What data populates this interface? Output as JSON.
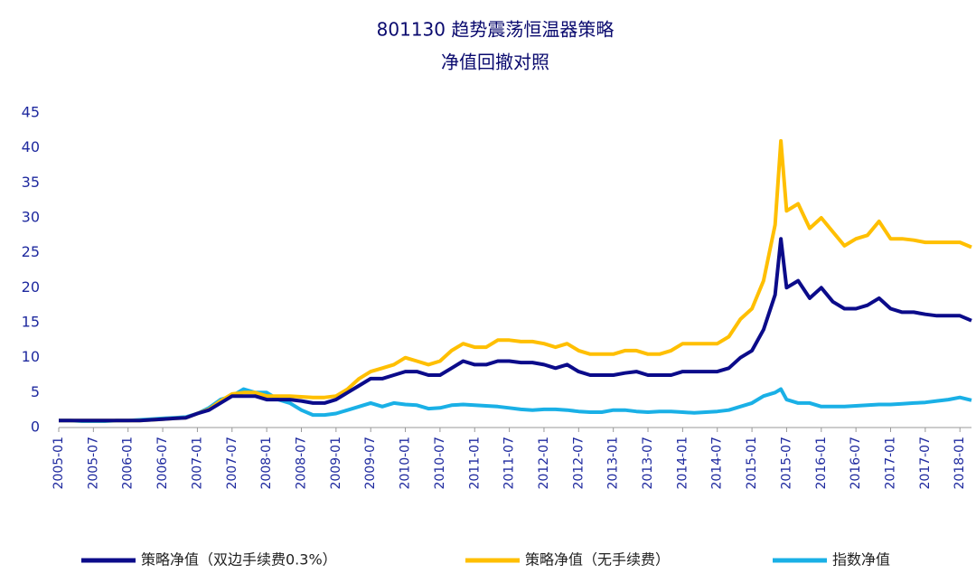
{
  "chart_data": {
    "type": "line",
    "title": "801130 趋势震荡恒温器策略",
    "subtitle": "净值回撤对照",
    "x": [
      "2005-01",
      "2005-03",
      "2005-05",
      "2005-07",
      "2005-09",
      "2005-11",
      "2006-01",
      "2006-03",
      "2006-05",
      "2006-07",
      "2006-09",
      "2006-11",
      "2007-01",
      "2007-03",
      "2007-05",
      "2007-07",
      "2007-09",
      "2007-11",
      "2008-01",
      "2008-03",
      "2008-05",
      "2008-07",
      "2008-09",
      "2008-11",
      "2009-01",
      "2009-03",
      "2009-05",
      "2009-07",
      "2009-09",
      "2009-11",
      "2010-01",
      "2010-03",
      "2010-05",
      "2010-07",
      "2010-09",
      "2010-11",
      "2011-01",
      "2011-03",
      "2011-05",
      "2011-07",
      "2011-09",
      "2011-11",
      "2012-01",
      "2012-03",
      "2012-05",
      "2012-07",
      "2012-09",
      "2012-11",
      "2013-01",
      "2013-03",
      "2013-05",
      "2013-07",
      "2013-09",
      "2013-11",
      "2014-01",
      "2014-03",
      "2014-05",
      "2014-07",
      "2014-09",
      "2014-11",
      "2015-01",
      "2015-03",
      "2015-05",
      "2015-06",
      "2015-07",
      "2015-09",
      "2015-11",
      "2016-01",
      "2016-03",
      "2016-05",
      "2016-07",
      "2016-09",
      "2016-11",
      "2017-01",
      "2017-03",
      "2017-05",
      "2017-07",
      "2017-09",
      "2017-11",
      "2018-01",
      "2018-03"
    ],
    "series": [
      {
        "name": "策略净值（双边手续费0.3%）",
        "color": "#0b0b8a",
        "values": [
          1,
          1,
          1,
          1,
          1,
          1,
          1,
          1,
          1.1,
          1.2,
          1.3,
          1.4,
          2,
          2.5,
          3.5,
          4.5,
          4.5,
          4.5,
          4,
          4,
          4,
          3.8,
          3.5,
          3.5,
          4,
          5,
          6,
          7,
          7,
          7.5,
          8,
          8,
          7.5,
          7.5,
          8.5,
          9.5,
          9,
          9,
          9.5,
          9.5,
          9.3,
          9.3,
          9,
          8.5,
          9,
          8,
          7.5,
          7.5,
          7.5,
          7.8,
          8,
          7.5,
          7.5,
          7.5,
          8,
          8,
          8,
          8,
          8.5,
          10,
          11,
          14,
          19,
          27,
          20,
          21,
          18.5,
          20,
          18,
          17,
          17,
          17.5,
          18.5,
          17,
          16.5,
          16.5,
          16.2,
          16,
          16,
          16,
          15.3
        ]
      },
      {
        "name": "策略净值（无手续费）",
        "color": "#ffbf00",
        "values": [
          1,
          1,
          1,
          1,
          1,
          1,
          1,
          1,
          1.1,
          1.2,
          1.3,
          1.4,
          2,
          2.6,
          3.8,
          4.8,
          5,
          5,
          4.5,
          4.5,
          4.5,
          4.4,
          4.3,
          4.3,
          4.5,
          5.5,
          7,
          8,
          8.5,
          9,
          10,
          9.5,
          9,
          9.5,
          11,
          12,
          11.5,
          11.5,
          12.5,
          12.5,
          12.3,
          12.3,
          12,
          11.5,
          12,
          11,
          10.5,
          10.5,
          10.5,
          11,
          11,
          10.5,
          10.5,
          11,
          12,
          12,
          12,
          12,
          13,
          15.5,
          17,
          21,
          29,
          41,
          31,
          32,
          28.5,
          30,
          28,
          26,
          27,
          27.5,
          29.5,
          27,
          27,
          26.8,
          26.5,
          26.5,
          26.5,
          26.5,
          25.8
        ]
      },
      {
        "name": "指数净值",
        "color": "#1ab0e6",
        "values": [
          1,
          1,
          0.9,
          0.9,
          0.9,
          1,
          1,
          1.1,
          1.2,
          1.3,
          1.4,
          1.5,
          2,
          2.8,
          4,
          4.5,
          5.5,
          5,
          5,
          4,
          3.5,
          2.5,
          1.8,
          1.8,
          2,
          2.5,
          3,
          3.5,
          3,
          3.5,
          3.3,
          3.2,
          2.7,
          2.8,
          3.2,
          3.3,
          3.2,
          3.1,
          3,
          2.8,
          2.6,
          2.5,
          2.6,
          2.6,
          2.5,
          2.3,
          2.2,
          2.2,
          2.5,
          2.5,
          2.3,
          2.2,
          2.3,
          2.3,
          2.2,
          2.1,
          2.2,
          2.3,
          2.5,
          3,
          3.5,
          4.5,
          5,
          5.5,
          4,
          3.5,
          3.5,
          3,
          3,
          3,
          3.1,
          3.2,
          3.3,
          3.3,
          3.4,
          3.5,
          3.6,
          3.8,
          4,
          4.3,
          3.9
        ]
      }
    ],
    "xlim": [
      "2005-01",
      "2018-03"
    ],
    "xticks": [
      "2005-01",
      "2005-07",
      "2006-01",
      "2006-07",
      "2007-01",
      "2007-07",
      "2008-01",
      "2008-07",
      "2009-01",
      "2009-07",
      "2010-01",
      "2010-07",
      "2011-01",
      "2011-07",
      "2012-01",
      "2012-07",
      "2013-01",
      "2013-07",
      "2014-01",
      "2014-07",
      "2015-01",
      "2015-07",
      "2016-01",
      "2016-07",
      "2017-01",
      "2017-07",
      "2018-01"
    ],
    "ylim": [
      0,
      45
    ],
    "yticks": [
      0,
      5,
      10,
      15,
      20,
      25,
      30,
      35,
      40,
      45
    ],
    "grid": false,
    "legend": "bottom"
  }
}
